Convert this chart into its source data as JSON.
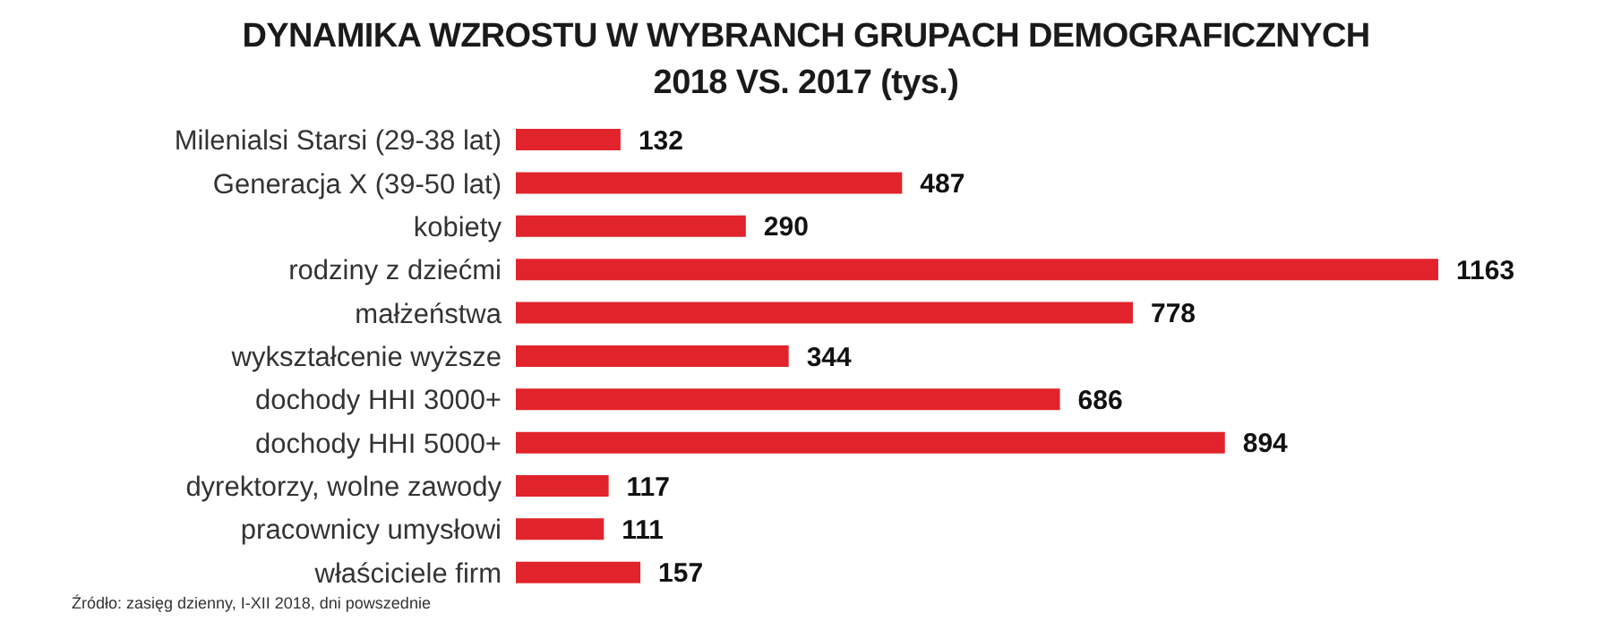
{
  "chart_data": {
    "type": "bar",
    "orientation": "horizontal",
    "title": "DYNAMIKA WZROSTU W WYBRANCH GRUPACH DEMOGRAFICZNYCH",
    "subtitle": "2018 VS. 2017 (tys.)",
    "categories": [
      "Milenialsi Starsi (29-38 lat)",
      "Generacja X (39-50 lat)",
      "kobiety",
      "rodziny z dziećmi",
      "małżeństwa",
      "wykształcenie wyższe",
      "dochody HHI 3000+",
      "dochody HHI 5000+",
      "dyrektorzy, wolne zawody",
      "pracownicy umysłowi",
      "właściciele firm"
    ],
    "values": [
      132,
      487,
      290,
      1163,
      778,
      344,
      686,
      894,
      117,
      111,
      157
    ],
    "color": "#e1232b",
    "data_labels": true,
    "annotations": [
      "Źródło: zasięg dzienny, I-XII 2018, dni powszednie"
    ]
  }
}
